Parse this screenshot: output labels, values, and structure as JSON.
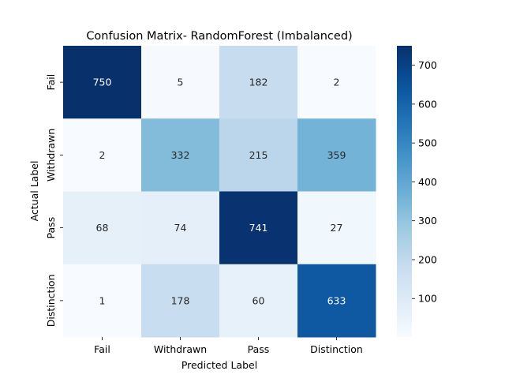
{
  "chart_data": {
    "type": "heatmap",
    "title": "Confusion Matrix- RandomForest (Imbalanced)",
    "xlabel": "Predicted Label",
    "ylabel": "Actual Label",
    "x_categories": [
      "Fail",
      "Withdrawn",
      "Pass",
      "Distinction"
    ],
    "y_categories": [
      "Fail",
      "Withdrawn",
      "Pass",
      "Distinction"
    ],
    "values": [
      [
        750,
        5,
        182,
        2
      ],
      [
        2,
        332,
        215,
        359
      ],
      [
        68,
        74,
        741,
        27
      ],
      [
        1,
        178,
        60,
        633
      ]
    ],
    "colormap": "Blues",
    "vmin": 1,
    "vmax": 750,
    "colorbar_ticks": [
      100,
      200,
      300,
      400,
      500,
      600,
      700
    ],
    "annotations_shown": true
  }
}
